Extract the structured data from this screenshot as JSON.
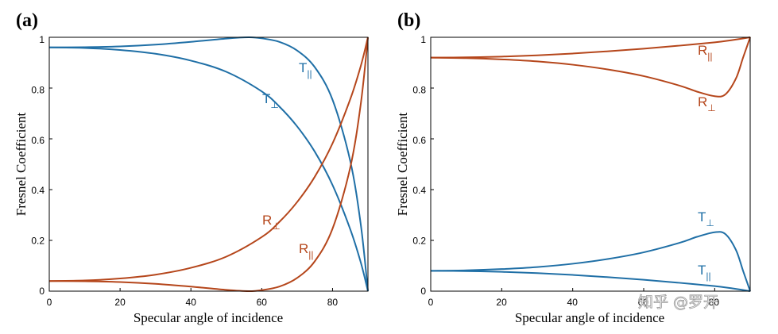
{
  "chart_data": [
    {
      "panel": "(a)",
      "type": "line",
      "xlabel": "Specular angle of incidence",
      "ylabel": "Fresnel Coefficient",
      "xlim": [
        0,
        90
      ],
      "ylim": [
        0,
        1
      ],
      "xticks": [
        0,
        20,
        40,
        60,
        80
      ],
      "yticks": [
        0,
        0.2,
        0.4,
        0.6,
        0.8,
        1
      ],
      "grid": false,
      "series": [
        {
          "name": "T||",
          "color": "#1f6fa6",
          "x": [
            0,
            10,
            20,
            30,
            40,
            50,
            56.3,
            60,
            65,
            70,
            75,
            80,
            85,
            88,
            90
          ],
          "values": [
            0.96,
            0.961,
            0.964,
            0.971,
            0.982,
            0.995,
            1.0,
            0.996,
            0.982,
            0.948,
            0.882,
            0.754,
            0.513,
            0.26,
            0.0
          ]
        },
        {
          "name": "T⊥",
          "color": "#1f6fa6",
          "x": [
            0,
            10,
            20,
            30,
            40,
            50,
            60,
            65,
            70,
            75,
            80,
            85,
            88,
            90
          ],
          "values": [
            0.96,
            0.958,
            0.95,
            0.935,
            0.908,
            0.864,
            0.787,
            0.727,
            0.649,
            0.549,
            0.418,
            0.244,
            0.112,
            0.0
          ]
        },
        {
          "name": "R⊥",
          "color": "#b5461b",
          "x": [
            0,
            10,
            20,
            30,
            40,
            50,
            60,
            65,
            70,
            75,
            80,
            85,
            88,
            90
          ],
          "values": [
            0.04,
            0.042,
            0.05,
            0.065,
            0.092,
            0.136,
            0.213,
            0.273,
            0.351,
            0.451,
            0.582,
            0.756,
            0.888,
            1.0
          ]
        },
        {
          "name": "R||",
          "color": "#b5461b",
          "x": [
            0,
            10,
            20,
            30,
            40,
            50,
            56.3,
            60,
            65,
            70,
            75,
            80,
            85,
            88,
            90
          ],
          "values": [
            0.04,
            0.039,
            0.036,
            0.029,
            0.018,
            0.005,
            0.0,
            0.004,
            0.018,
            0.052,
            0.118,
            0.246,
            0.487,
            0.74,
            1.0
          ]
        }
      ],
      "annotations": [
        {
          "base": "T",
          "sub": "||",
          "series": "T||"
        },
        {
          "base": "T",
          "sub": "⊥",
          "series": "T⊥"
        },
        {
          "base": "R",
          "sub": "⊥",
          "series": "R⊥"
        },
        {
          "base": "R",
          "sub": "||",
          "series": "R||"
        }
      ]
    },
    {
      "panel": "(b)",
      "type": "line",
      "xlabel": "Specular angle of incidence",
      "ylabel": "Fresnel Coefficient",
      "xlim": [
        0,
        90
      ],
      "ylim": [
        0,
        1
      ],
      "xticks": [
        0,
        20,
        40,
        60,
        80
      ],
      "yticks": [
        0,
        0.2,
        0.4,
        0.6,
        0.8,
        1
      ],
      "grid": false,
      "series": [
        {
          "name": "R||",
          "color": "#b5461b",
          "x": [
            0,
            10,
            20,
            30,
            40,
            50,
            60,
            70,
            80,
            85,
            90
          ],
          "values": [
            0.92,
            0.921,
            0.924,
            0.929,
            0.936,
            0.945,
            0.955,
            0.967,
            0.98,
            0.989,
            1.0
          ]
        },
        {
          "name": "R⊥",
          "color": "#b5461b",
          "x": [
            0,
            10,
            20,
            30,
            40,
            50,
            60,
            70,
            75,
            80,
            83,
            86,
            88,
            90
          ],
          "values": [
            0.92,
            0.918,
            0.913,
            0.905,
            0.892,
            0.873,
            0.847,
            0.81,
            0.786,
            0.768,
            0.775,
            0.838,
            0.92,
            1.0
          ]
        },
        {
          "name": "T⊥",
          "color": "#1f6fa6",
          "x": [
            0,
            10,
            20,
            30,
            40,
            50,
            60,
            70,
            75,
            80,
            83,
            86,
            88,
            90
          ],
          "values": [
            0.08,
            0.082,
            0.087,
            0.095,
            0.108,
            0.127,
            0.153,
            0.19,
            0.214,
            0.232,
            0.225,
            0.162,
            0.08,
            0.0
          ]
        },
        {
          "name": "T||",
          "color": "#1f6fa6",
          "x": [
            0,
            10,
            20,
            30,
            40,
            50,
            60,
            70,
            80,
            85,
            90
          ],
          "values": [
            0.08,
            0.079,
            0.076,
            0.071,
            0.064,
            0.055,
            0.045,
            0.033,
            0.02,
            0.011,
            0.0
          ]
        }
      ],
      "annotations": [
        {
          "base": "R",
          "sub": "||",
          "series": "R||"
        },
        {
          "base": "R",
          "sub": "⊥",
          "series": "R⊥"
        },
        {
          "base": "T",
          "sub": "⊥",
          "series": "T⊥"
        },
        {
          "base": "T",
          "sub": "||",
          "series": "T||"
        }
      ]
    }
  ],
  "watermark": "知乎 @罗开"
}
